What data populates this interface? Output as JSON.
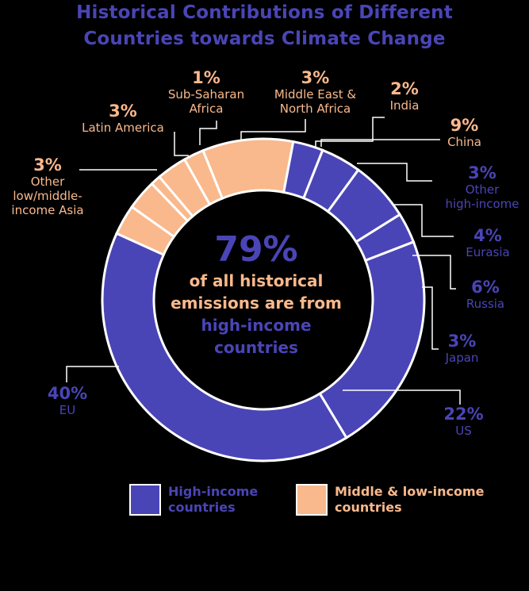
{
  "title_lines": [
    "Historical Contributions of Different",
    "Countries towards Climate Change"
  ],
  "center": {
    "percent": "79%",
    "line1": "of all historical",
    "line2": "emissions are from",
    "line3": "high-income",
    "line4": "countries"
  },
  "legend": {
    "high_line1": "High-income",
    "high_line2": "countries",
    "low_line1": "Middle & low-income",
    "low_line2": "countries"
  },
  "colors": {
    "high": "#4A45B6",
    "low": "#F9B98C",
    "background": "#000000",
    "divider": "#ffffff"
  },
  "chart_data": {
    "type": "pie",
    "title": "Historical Contributions of Different Countries towards Climate Change",
    "slices": [
      {
        "name": "China",
        "percent_label": "9%",
        "value": 9,
        "group": "low",
        "label_lines": [
          "China"
        ]
      },
      {
        "name": "Other high-income",
        "percent_label": "3%",
        "value": 3,
        "group": "high",
        "label_lines": [
          "Other",
          "high-income"
        ]
      },
      {
        "name": "Eurasia",
        "percent_label": "4%",
        "value": 4,
        "group": "high",
        "label_lines": [
          "Eurasia"
        ]
      },
      {
        "name": "Russia",
        "percent_label": "6%",
        "value": 6,
        "group": "high",
        "label_lines": [
          "Russia"
        ]
      },
      {
        "name": "Japan",
        "percent_label": "3%",
        "value": 3,
        "group": "high",
        "label_lines": [
          "Japan"
        ]
      },
      {
        "name": "US",
        "percent_label": "22%",
        "value": 22,
        "group": "high",
        "label_lines": [
          "US"
        ]
      },
      {
        "name": "EU",
        "percent_label": "40%",
        "value": 40,
        "group": "high",
        "label_lines": [
          "EU"
        ]
      },
      {
        "name": "Other low/middle-income Asia",
        "percent_label": "3%",
        "value": 3,
        "group": "low",
        "label_lines": [
          "Other",
          "low/middle-",
          "income Asia"
        ]
      },
      {
        "name": "Latin America",
        "percent_label": "3%",
        "value": 3,
        "group": "low",
        "label_lines": [
          "Latin America"
        ]
      },
      {
        "name": "Sub-Saharan Africa",
        "percent_label": "1%",
        "value": 1,
        "group": "low",
        "label_lines": [
          "Sub-Saharan",
          "Africa"
        ]
      },
      {
        "name": "Middle East & North Africa",
        "percent_label": "3%",
        "value": 3,
        "group": "low",
        "label_lines": [
          "Middle East &",
          "North Africa"
        ]
      },
      {
        "name": "India",
        "percent_label": "2%",
        "value": 2,
        "group": "low",
        "label_lines": [
          "India"
        ]
      }
    ],
    "legend_position": "bottom"
  }
}
